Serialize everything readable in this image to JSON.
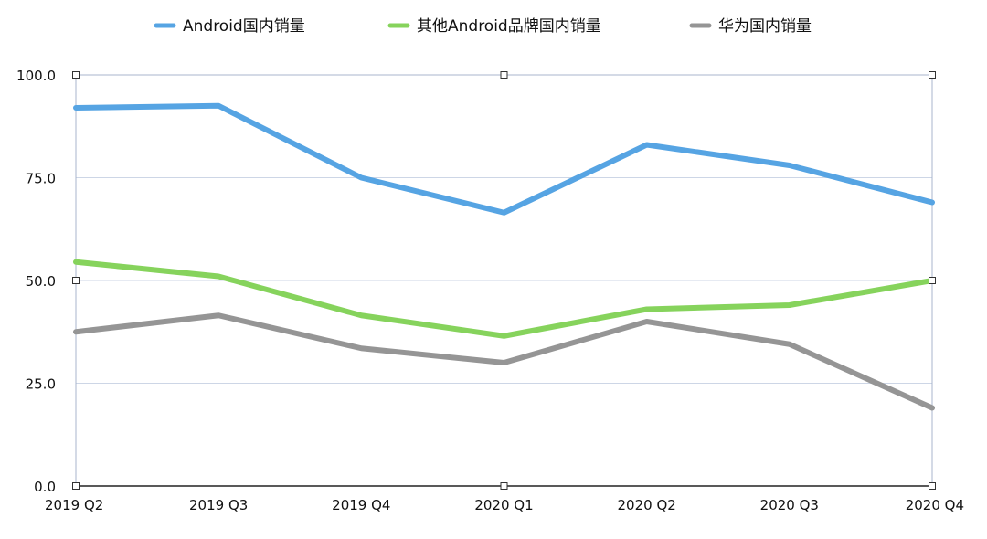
{
  "chart_data": {
    "type": "line",
    "title": "",
    "xlabel": "",
    "ylabel": "",
    "categories": [
      "2019 Q2",
      "2019 Q3",
      "2019 Q4",
      "2020 Q1",
      "2020 Q2",
      "2020 Q3",
      "2020 Q4"
    ],
    "ylim": [
      0,
      100
    ],
    "yticks": [
      "0.0",
      "25.0",
      "50.0",
      "75.0",
      "100.0"
    ],
    "ytick_values": [
      0,
      25,
      50,
      75,
      100
    ],
    "grid": true,
    "legend_position": "top-center",
    "series": [
      {
        "name": "Android国内销量",
        "color": "#56a4e3",
        "values": [
          92,
          92.5,
          75,
          66.5,
          83,
          78,
          69
        ]
      },
      {
        "name": "其他Android品牌国内销量",
        "color": "#86d35c",
        "values": [
          54.5,
          51,
          41.5,
          36.5,
          43,
          44,
          50
        ]
      },
      {
        "name": "华为国内销量",
        "color": "#959595",
        "values": [
          37.5,
          41.5,
          33.5,
          30,
          40,
          34.5,
          19
        ]
      }
    ]
  }
}
